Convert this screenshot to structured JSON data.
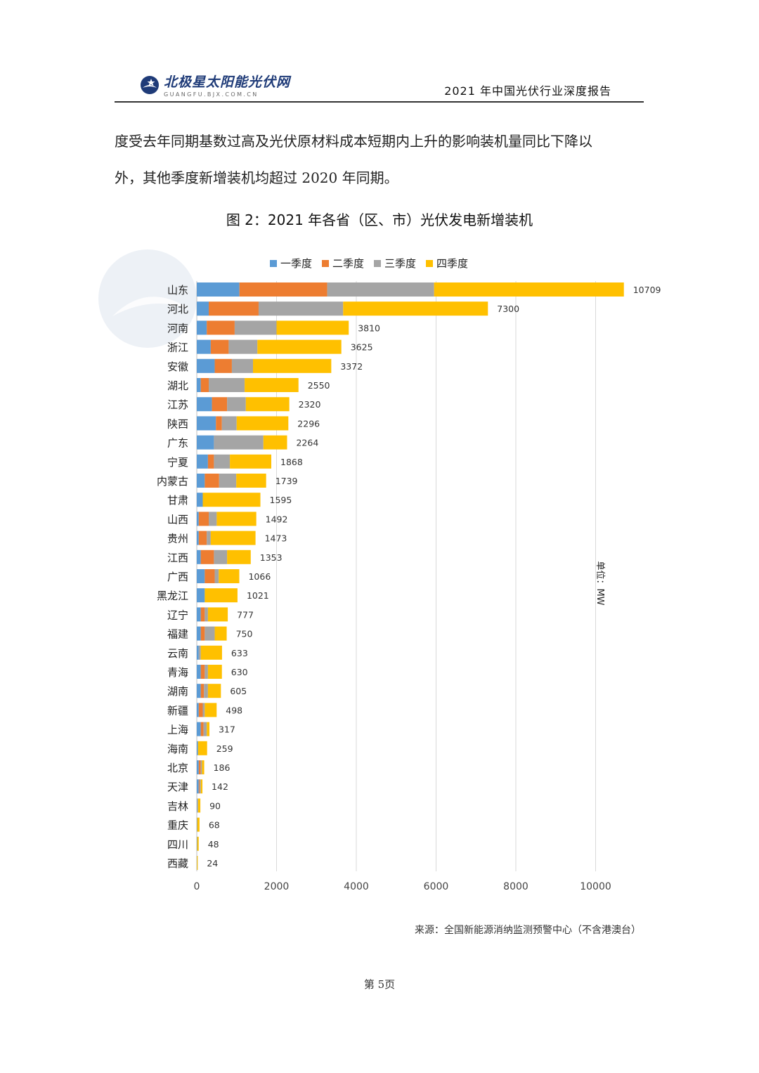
{
  "header": {
    "logo_name": "北极星太阳能光伏网",
    "logo_sub": "GUANGFU.BJX.COM.CN",
    "report_title": "2021 年中国光伏行业深度报告"
  },
  "body": {
    "line1": "度受去年同期基数过高及光伏原材料成本短期内上升的影响装机量同比下降以",
    "line2": "外，其他季度新增装机均超过 2020 年同期。"
  },
  "figure_title": "图 2：2021 年各省（区、市）光伏发电新增装机",
  "source": "来源：全国新能源消纳监测预警中心（不含港澳台）",
  "page_number": "第 5页",
  "colors": {
    "q1": "#5b9bd5",
    "q2": "#ed7d31",
    "q3": "#a5a5a5",
    "q4": "#ffc000",
    "grid": "#d9d9d9"
  },
  "chart_data": {
    "type": "bar",
    "orientation": "horizontal",
    "stacked": true,
    "unit_label": "单位：MW",
    "categories": [
      "山东",
      "河北",
      "河南",
      "浙江",
      "安徽",
      "湖北",
      "江苏",
      "陕西",
      "广东",
      "宁夏",
      "内蒙古",
      "甘肃",
      "山西",
      "贵州",
      "江西",
      "广西",
      "黑龙江",
      "辽宁",
      "福建",
      "云南",
      "青海",
      "湖南",
      "新疆",
      "上海",
      "海南",
      "北京",
      "天津",
      "吉林",
      "重庆",
      "四川",
      "西藏"
    ],
    "series": [
      {
        "name": "一季度",
        "values": [
          1070,
          300,
          250,
          350,
          450,
          100,
          380,
          480,
          430,
          280,
          200,
          150,
          50,
          50,
          100,
          200,
          200,
          100,
          100,
          50,
          100,
          100,
          50,
          100,
          30,
          50,
          50,
          10,
          10,
          10,
          5
        ]
      },
      {
        "name": "二季度",
        "values": [
          2200,
          1250,
          700,
          450,
          430,
          200,
          380,
          150,
          0,
          150,
          360,
          0,
          250,
          200,
          330,
          250,
          0,
          100,
          100,
          0,
          100,
          80,
          100,
          70,
          0,
          50,
          20,
          0,
          0,
          0,
          0
        ]
      },
      {
        "name": "三季度",
        "values": [
          2680,
          2120,
          1050,
          720,
          530,
          900,
          470,
          370,
          1240,
          400,
          430,
          0,
          200,
          100,
          330,
          100,
          0,
          80,
          250,
          50,
          80,
          100,
          50,
          80,
          0,
          30,
          30,
          20,
          0,
          0,
          0
        ]
      },
      {
        "name": "四季度",
        "values": [
          4759,
          3630,
          1810,
          2105,
          1962,
          1350,
          1090,
          1296,
          594,
          1038,
          749,
          1445,
          992,
          1123,
          593,
          516,
          821,
          497,
          300,
          533,
          350,
          325,
          298,
          67,
          229,
          56,
          42,
          60,
          58,
          38,
          19
        ]
      }
    ],
    "totals": [
      10709,
      7300,
      3810,
      3625,
      3372,
      2550,
      2320,
      2296,
      2264,
      1868,
      1739,
      1595,
      1492,
      1473,
      1353,
      1066,
      1021,
      777,
      750,
      633,
      630,
      605,
      498,
      317,
      259,
      186,
      142,
      90,
      68,
      48,
      24
    ],
    "xlim": [
      0,
      10000
    ],
    "xticks": [
      0,
      2000,
      4000,
      6000,
      8000,
      10000
    ],
    "legend": "top",
    "grid": true
  }
}
